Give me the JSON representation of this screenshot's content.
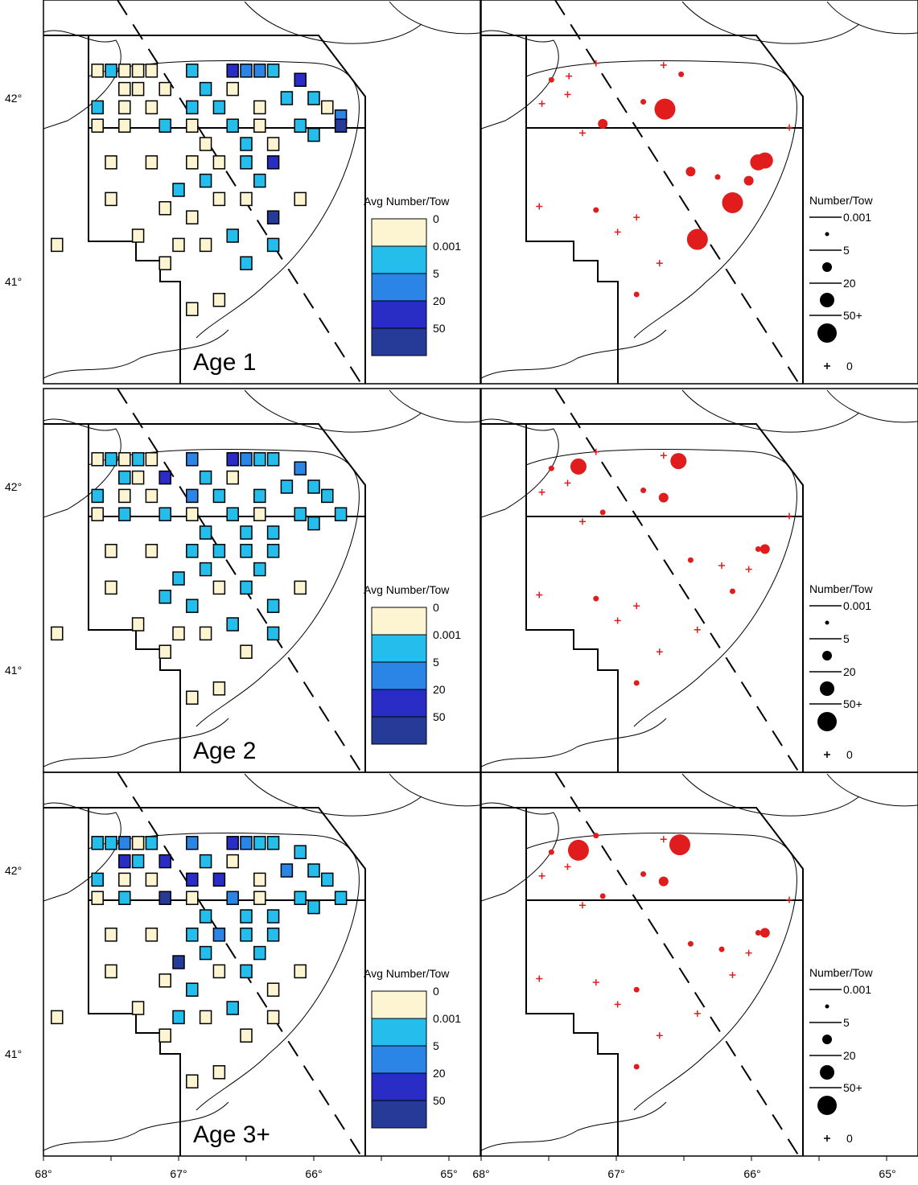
{
  "colors": {
    "bins": [
      "#fdf5d2",
      "#24bdec",
      "#2a85e6",
      "#2a2cc6",
      "#263b97"
    ],
    "points": "#e01c1c",
    "legend_black": "#000000"
  },
  "left_legend": {
    "title": "Avg Number/Tow",
    "labels": [
      "0",
      "0.001",
      "5",
      "20",
      "50"
    ]
  },
  "right_legend": {
    "title": "Number/Tow",
    "labels": [
      "0.001",
      "5",
      "20",
      "50+",
      "0"
    ]
  },
  "lat_labels": [
    "42°",
    "41°"
  ],
  "lon_labels": [
    "68°",
    "67°",
    "66°",
    "65°"
  ],
  "panels": [
    {
      "age_label": "Age 1"
    },
    {
      "age_label": "Age 2"
    },
    {
      "age_label": "Age 3+"
    }
  ],
  "chart_data": {
    "type": "map",
    "description_fields": [
      "survey grid cells (left) and station catches (right)"
    ],
    "bins": [
      "0",
      "0.001",
      "5",
      "20",
      "50"
    ],
    "grid_cells": [
      [
        [
          -67.6,
          42.15,
          0
        ],
        [
          -67.5,
          42.15,
          1
        ],
        [
          -67.4,
          42.15,
          0
        ],
        [
          -67.3,
          42.15,
          0
        ],
        [
          -67.2,
          42.15,
          0
        ],
        [
          -66.9,
          42.15,
          1
        ],
        [
          -66.6,
          42.15,
          3
        ],
        [
          -66.5,
          42.15,
          2
        ],
        [
          -66.4,
          42.15,
          2
        ],
        [
          -66.3,
          42.15,
          1
        ],
        [
          -66.1,
          42.1,
          3
        ],
        [
          -66.0,
          42.0,
          1
        ],
        [
          -65.9,
          41.95,
          0
        ],
        [
          -65.8,
          41.9,
          2
        ],
        [
          -65.8,
          41.85,
          4
        ],
        [
          -67.4,
          42.05,
          0
        ],
        [
          -67.3,
          42.05,
          0
        ],
        [
          -67.1,
          42.05,
          0
        ],
        [
          -66.8,
          42.05,
          1
        ],
        [
          -66.6,
          42.05,
          0
        ],
        [
          -66.2,
          42.0,
          1
        ],
        [
          -67.6,
          41.95,
          1
        ],
        [
          -67.4,
          41.95,
          0
        ],
        [
          -67.2,
          41.95,
          0
        ],
        [
          -66.9,
          41.95,
          1
        ],
        [
          -66.7,
          41.95,
          1
        ],
        [
          -66.4,
          41.95,
          0
        ],
        [
          -67.6,
          41.85,
          0
        ],
        [
          -67.4,
          41.85,
          0
        ],
        [
          -67.1,
          41.85,
          1
        ],
        [
          -66.9,
          41.85,
          0
        ],
        [
          -66.6,
          41.85,
          1
        ],
        [
          -66.4,
          41.85,
          0
        ],
        [
          -66.1,
          41.85,
          1
        ],
        [
          -66.0,
          41.8,
          1
        ],
        [
          -66.8,
          41.75,
          0
        ],
        [
          -66.5,
          41.75,
          1
        ],
        [
          -66.3,
          41.75,
          0
        ],
        [
          -67.5,
          41.65,
          0
        ],
        [
          -67.2,
          41.65,
          0
        ],
        [
          -66.9,
          41.65,
          0
        ],
        [
          -66.7,
          41.65,
          0
        ],
        [
          -66.5,
          41.65,
          1
        ],
        [
          -66.3,
          41.65,
          3
        ],
        [
          -66.8,
          41.55,
          1
        ],
        [
          -66.4,
          41.55,
          1
        ],
        [
          -67.5,
          41.45,
          0
        ],
        [
          -67.0,
          41.5,
          1
        ],
        [
          -66.7,
          41.45,
          0
        ],
        [
          -66.5,
          41.45,
          0
        ],
        [
          -66.1,
          41.45,
          0
        ],
        [
          -67.1,
          41.4,
          0
        ],
        [
          -66.9,
          41.35,
          0
        ],
        [
          -66.3,
          41.35,
          4
        ],
        [
          -67.3,
          41.25,
          0
        ],
        [
          -66.6,
          41.25,
          1
        ],
        [
          -66.3,
          41.2,
          1
        ],
        [
          -67.9,
          41.2,
          0
        ],
        [
          -67.0,
          41.2,
          0
        ],
        [
          -66.8,
          41.2,
          0
        ],
        [
          -66.5,
          41.1,
          1
        ],
        [
          -67.1,
          41.1,
          0
        ],
        [
          -66.7,
          40.9,
          0
        ],
        [
          -66.9,
          40.85,
          0
        ]
      ],
      [
        [
          -67.6,
          42.15,
          0
        ],
        [
          -67.5,
          42.15,
          1
        ],
        [
          -67.4,
          42.15,
          0
        ],
        [
          -67.3,
          42.15,
          1
        ],
        [
          -67.2,
          42.15,
          0
        ],
        [
          -66.9,
          42.15,
          2
        ],
        [
          -66.6,
          42.15,
          3
        ],
        [
          -66.5,
          42.15,
          2
        ],
        [
          -66.4,
          42.15,
          1
        ],
        [
          -66.3,
          42.15,
          1
        ],
        [
          -66.1,
          42.1,
          2
        ],
        [
          -66.0,
          42.0,
          1
        ],
        [
          -65.9,
          41.95,
          1
        ],
        [
          -65.8,
          41.85,
          1
        ],
        [
          -67.4,
          42.05,
          1
        ],
        [
          -67.3,
          42.05,
          0
        ],
        [
          -67.1,
          42.05,
          3
        ],
        [
          -66.8,
          42.05,
          1
        ],
        [
          -66.6,
          42.05,
          0
        ],
        [
          -66.2,
          42.0,
          1
        ],
        [
          -67.6,
          41.95,
          1
        ],
        [
          -67.4,
          41.95,
          0
        ],
        [
          -67.2,
          41.95,
          0
        ],
        [
          -66.9,
          41.95,
          2
        ],
        [
          -66.7,
          41.95,
          1
        ],
        [
          -66.4,
          41.95,
          1
        ],
        [
          -67.6,
          41.85,
          0
        ],
        [
          -67.4,
          41.85,
          1
        ],
        [
          -67.1,
          41.85,
          1
        ],
        [
          -66.9,
          41.85,
          0
        ],
        [
          -66.6,
          41.85,
          1
        ],
        [
          -66.4,
          41.85,
          0
        ],
        [
          -66.1,
          41.85,
          1
        ],
        [
          -66.0,
          41.8,
          1
        ],
        [
          -66.8,
          41.75,
          1
        ],
        [
          -66.5,
          41.75,
          1
        ],
        [
          -66.3,
          41.75,
          1
        ],
        [
          -67.5,
          41.65,
          0
        ],
        [
          -67.2,
          41.65,
          0
        ],
        [
          -66.9,
          41.65,
          1
        ],
        [
          -66.7,
          41.65,
          1
        ],
        [
          -66.5,
          41.65,
          1
        ],
        [
          -66.3,
          41.65,
          1
        ],
        [
          -66.8,
          41.55,
          1
        ],
        [
          -66.4,
          41.55,
          1
        ],
        [
          -67.5,
          41.45,
          0
        ],
        [
          -67.0,
          41.5,
          1
        ],
        [
          -66.7,
          41.45,
          0
        ],
        [
          -66.5,
          41.45,
          1
        ],
        [
          -66.1,
          41.45,
          0
        ],
        [
          -67.1,
          41.4,
          1
        ],
        [
          -66.9,
          41.35,
          1
        ],
        [
          -66.3,
          41.35,
          1
        ],
        [
          -67.3,
          41.25,
          0
        ],
        [
          -66.6,
          41.25,
          1
        ],
        [
          -66.3,
          41.2,
          1
        ],
        [
          -67.9,
          41.2,
          0
        ],
        [
          -67.0,
          41.2,
          0
        ],
        [
          -66.8,
          41.2,
          0
        ],
        [
          -66.5,
          41.1,
          0
        ],
        [
          -67.1,
          41.1,
          0
        ],
        [
          -66.7,
          40.9,
          0
        ],
        [
          -66.9,
          40.85,
          0
        ]
      ],
      [
        [
          -67.6,
          42.15,
          1
        ],
        [
          -67.5,
          42.15,
          1
        ],
        [
          -67.4,
          42.15,
          2
        ],
        [
          -67.3,
          42.15,
          0
        ],
        [
          -67.2,
          42.15,
          1
        ],
        [
          -66.9,
          42.15,
          2
        ],
        [
          -66.6,
          42.15,
          3
        ],
        [
          -66.5,
          42.15,
          2
        ],
        [
          -66.4,
          42.15,
          1
        ],
        [
          -66.3,
          42.15,
          1
        ],
        [
          -66.1,
          42.1,
          1
        ],
        [
          -66.0,
          42.0,
          1
        ],
        [
          -65.9,
          41.95,
          1
        ],
        [
          -65.8,
          41.85,
          1
        ],
        [
          -67.4,
          42.05,
          3
        ],
        [
          -67.3,
          42.05,
          1
        ],
        [
          -67.1,
          42.05,
          3
        ],
        [
          -66.8,
          42.05,
          1
        ],
        [
          -66.6,
          42.05,
          0
        ],
        [
          -66.2,
          42.0,
          2
        ],
        [
          -67.6,
          41.95,
          1
        ],
        [
          -67.4,
          41.95,
          0
        ],
        [
          -67.2,
          41.95,
          0
        ],
        [
          -66.9,
          41.95,
          3
        ],
        [
          -66.7,
          41.95,
          3
        ],
        [
          -66.4,
          41.95,
          0
        ],
        [
          -67.6,
          41.85,
          0
        ],
        [
          -67.4,
          41.85,
          1
        ],
        [
          -67.1,
          41.85,
          4
        ],
        [
          -66.9,
          41.85,
          0
        ],
        [
          -66.6,
          41.85,
          2
        ],
        [
          -66.4,
          41.85,
          0
        ],
        [
          -66.1,
          41.85,
          1
        ],
        [
          -66.0,
          41.8,
          1
        ],
        [
          -66.8,
          41.75,
          1
        ],
        [
          -66.5,
          41.75,
          1
        ],
        [
          -66.3,
          41.75,
          1
        ],
        [
          -67.5,
          41.65,
          0
        ],
        [
          -67.2,
          41.65,
          0
        ],
        [
          -66.9,
          41.65,
          1
        ],
        [
          -66.7,
          41.65,
          2
        ],
        [
          -66.5,
          41.65,
          1
        ],
        [
          -66.3,
          41.65,
          1
        ],
        [
          -66.8,
          41.55,
          1
        ],
        [
          -66.4,
          41.55,
          1
        ],
        [
          -67.5,
          41.45,
          0
        ],
        [
          -67.0,
          41.5,
          4
        ],
        [
          -66.7,
          41.45,
          0
        ],
        [
          -66.5,
          41.45,
          1
        ],
        [
          -66.1,
          41.45,
          0
        ],
        [
          -67.1,
          41.4,
          0
        ],
        [
          -66.9,
          41.35,
          1
        ],
        [
          -66.3,
          41.35,
          0
        ],
        [
          -67.3,
          41.25,
          0
        ],
        [
          -66.6,
          41.25,
          1
        ],
        [
          -66.3,
          41.2,
          0
        ],
        [
          -67.9,
          41.2,
          0
        ],
        [
          -67.0,
          41.2,
          1
        ],
        [
          -66.8,
          41.2,
          0
        ],
        [
          -66.5,
          41.1,
          0
        ],
        [
          -67.1,
          41.1,
          0
        ],
        [
          -66.7,
          40.9,
          0
        ],
        [
          -66.9,
          40.85,
          0
        ]
      ]
    ],
    "stations": [
      [
        [
          -67.55,
          41.97,
          "zero"
        ],
        [
          -67.48,
          42.1,
          "s"
        ],
        [
          -67.35,
          42.12,
          "zero"
        ],
        [
          -67.36,
          42.02,
          "zero"
        ],
        [
          -67.15,
          42.19,
          "zero"
        ],
        [
          -66.8,
          41.98,
          "s"
        ],
        [
          -66.64,
          41.94,
          "xl"
        ],
        [
          -66.52,
          42.13,
          "s"
        ],
        [
          -67.1,
          41.86,
          "m"
        ],
        [
          -67.25,
          41.81,
          "zero"
        ],
        [
          -66.65,
          42.18,
          "zero"
        ],
        [
          -65.72,
          41.84,
          "zero"
        ],
        [
          -65.95,
          41.65,
          "l"
        ],
        [
          -65.9,
          41.66,
          "l"
        ],
        [
          -66.45,
          41.6,
          "m"
        ],
        [
          -66.25,
          41.57,
          "s"
        ],
        [
          -66.02,
          41.55,
          "m"
        ],
        [
          -66.14,
          41.43,
          "xl"
        ],
        [
          -67.57,
          41.41,
          "zero"
        ],
        [
          -67.15,
          41.39,
          "s"
        ],
        [
          -66.85,
          41.35,
          "zero"
        ],
        [
          -66.99,
          41.27,
          "zero"
        ],
        [
          -66.4,
          41.23,
          "xl"
        ],
        [
          -66.68,
          41.1,
          "zero"
        ],
        [
          -66.85,
          40.93,
          "s"
        ]
      ],
      [
        [
          -67.55,
          41.97,
          "zero"
        ],
        [
          -67.48,
          42.1,
          "s"
        ],
        [
          -67.28,
          42.11,
          "l"
        ],
        [
          -67.36,
          42.02,
          "zero"
        ],
        [
          -67.15,
          42.19,
          "zero"
        ],
        [
          -66.8,
          41.98,
          "s"
        ],
        [
          -66.65,
          41.94,
          "m"
        ],
        [
          -66.54,
          42.14,
          "l"
        ],
        [
          -67.1,
          41.86,
          "s"
        ],
        [
          -67.25,
          41.81,
          "zero"
        ],
        [
          -66.65,
          42.17,
          "zero"
        ],
        [
          -65.72,
          41.84,
          "zero"
        ],
        [
          -65.95,
          41.66,
          "s"
        ],
        [
          -65.9,
          41.66,
          "m"
        ],
        [
          -66.45,
          41.6,
          "s"
        ],
        [
          -66.22,
          41.57,
          "zero"
        ],
        [
          -66.02,
          41.55,
          "zero"
        ],
        [
          -66.14,
          41.43,
          "s"
        ],
        [
          -67.57,
          41.41,
          "zero"
        ],
        [
          -67.15,
          41.39,
          "s"
        ],
        [
          -66.85,
          41.35,
          "zero"
        ],
        [
          -66.99,
          41.27,
          "zero"
        ],
        [
          -66.4,
          41.22,
          "zero"
        ],
        [
          -66.68,
          41.1,
          "zero"
        ],
        [
          -66.85,
          40.93,
          "s"
        ]
      ],
      [
        [
          -67.55,
          41.97,
          "zero"
        ],
        [
          -67.48,
          42.1,
          "s"
        ],
        [
          -67.28,
          42.11,
          "xl"
        ],
        [
          -67.36,
          42.02,
          "zero"
        ],
        [
          -67.15,
          42.19,
          "s"
        ],
        [
          -66.8,
          41.98,
          "s"
        ],
        [
          -66.65,
          41.94,
          "m"
        ],
        [
          -66.53,
          42.14,
          "xl"
        ],
        [
          -67.1,
          41.86,
          "s"
        ],
        [
          -67.25,
          41.81,
          "zero"
        ],
        [
          -66.65,
          42.17,
          "zero"
        ],
        [
          -65.72,
          41.84,
          "zero"
        ],
        [
          -65.95,
          41.66,
          "s"
        ],
        [
          -65.9,
          41.66,
          "m"
        ],
        [
          -66.45,
          41.6,
          "s"
        ],
        [
          -66.22,
          41.57,
          "s"
        ],
        [
          -66.02,
          41.55,
          "zero"
        ],
        [
          -66.14,
          41.43,
          "zero"
        ],
        [
          -67.57,
          41.41,
          "zero"
        ],
        [
          -67.15,
          41.39,
          "zero"
        ],
        [
          -66.85,
          41.35,
          "s"
        ],
        [
          -66.99,
          41.27,
          "zero"
        ],
        [
          -66.4,
          41.22,
          "zero"
        ],
        [
          -66.68,
          41.1,
          "zero"
        ],
        [
          -66.85,
          40.93,
          "s"
        ]
      ]
    ]
  }
}
